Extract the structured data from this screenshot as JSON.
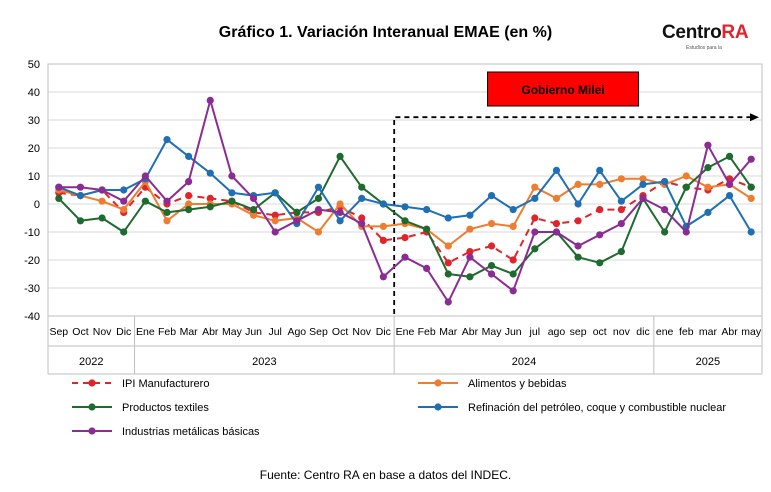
{
  "title": "Gráfico 1. Variación Interanual EMAE (en %)",
  "brand": {
    "name_main": "Centro",
    "name_accent": "RA",
    "tagline": "Estudios para la"
  },
  "source": "Fuente: Centro RA en base a datos del INDEC.",
  "colors": {
    "ipi": "#e0242b",
    "alimentos": "#ed7d31",
    "textiles": "#1e6b30",
    "refinacion": "#1f6fb4",
    "metalicas": "#8b2c94",
    "annotation_box": "#ff0000"
  },
  "chart_data": {
    "type": "line",
    "ylim": [
      -40,
      50
    ],
    "yticks": [
      -40,
      -30,
      -20,
      -10,
      0,
      10,
      20,
      30,
      40,
      50
    ],
    "grid": true,
    "legend_position": "bottom",
    "categories": [
      "Sep",
      "Oct",
      "Nov",
      "Dic",
      "Ene",
      "Feb",
      "Mar",
      "Abr",
      "May",
      "Jun",
      "Jul",
      "Ago",
      "Sep",
      "Oct",
      "Nov",
      "Dic",
      "Ene",
      "Feb",
      "Mar",
      "Abr",
      "May",
      "Jun",
      "jul",
      "ago",
      "sep",
      "oct",
      "nov",
      "dic",
      "ene",
      "feb",
      "mar",
      "Abr",
      "may"
    ],
    "year_groups": [
      {
        "label": "2022",
        "start": 0,
        "end": 3
      },
      {
        "label": "2023",
        "start": 4,
        "end": 15
      },
      {
        "label": "2024",
        "start": 16,
        "end": 27
      },
      {
        "label": "2025",
        "start": 28,
        "end": 32
      }
    ],
    "annotation": {
      "text": "Gobierno Milei",
      "start_index": 15
    },
    "series": [
      {
        "key": "ipi",
        "name": "IPI Manufacturero",
        "style": "dashed",
        "values": [
          4,
          3,
          5,
          -3,
          6,
          0,
          3,
          2,
          1,
          -3,
          -4,
          -3,
          -3,
          -1,
          -5,
          -13,
          -12,
          -10,
          -21,
          -17,
          -15,
          -20,
          -5,
          -7,
          -6,
          -2,
          -2,
          3,
          8,
          6,
          5,
          9,
          6
        ]
      },
      {
        "key": "alimentos",
        "name": "Alimentos y bebidas",
        "style": "solid",
        "values": [
          5,
          3,
          1,
          -2,
          8,
          -6,
          0,
          0,
          0,
          -4,
          -6,
          -5,
          -10,
          0,
          -8,
          -8,
          -7,
          -9,
          -15,
          -9,
          -7,
          -8,
          6,
          2,
          7,
          7,
          9,
          9,
          7,
          10,
          6,
          7,
          2
        ]
      },
      {
        "key": "textiles",
        "name": "Productos textiles",
        "style": "solid",
        "values": [
          2,
          -6,
          -5,
          -10,
          1,
          -3,
          -2,
          -1,
          1,
          -2,
          4,
          -3,
          2,
          17,
          6,
          0,
          -6,
          -9,
          -25,
          -26,
          -22,
          -25,
          -16,
          -10,
          -19,
          -21,
          -17,
          2,
          -10,
          6,
          13,
          17,
          6
        ]
      },
      {
        "key": "refinacion",
        "name": "Refinación del petróleo, coque y combustible nuclear",
        "style": "solid",
        "values": [
          6,
          3,
          5,
          5,
          9,
          23,
          17,
          11,
          4,
          3,
          4,
          -7,
          6,
          -6,
          2,
          0,
          -1,
          -2,
          -5,
          -4,
          3,
          -2,
          2,
          12,
          0,
          12,
          1,
          7,
          8,
          -8,
          -3,
          3,
          -10
        ]
      },
      {
        "key": "metalicas",
        "name": "Industrias metálicas básicas",
        "style": "solid",
        "values": [
          6,
          6,
          5,
          1,
          10,
          1,
          8,
          37,
          10,
          2,
          -10,
          -6,
          -2,
          -3,
          -7,
          -26,
          -19,
          -23,
          -35,
          -19,
          -25,
          -31,
          -10,
          -10,
          -15,
          -11,
          -7,
          2,
          -2,
          -10,
          21,
          7,
          16
        ]
      }
    ]
  }
}
